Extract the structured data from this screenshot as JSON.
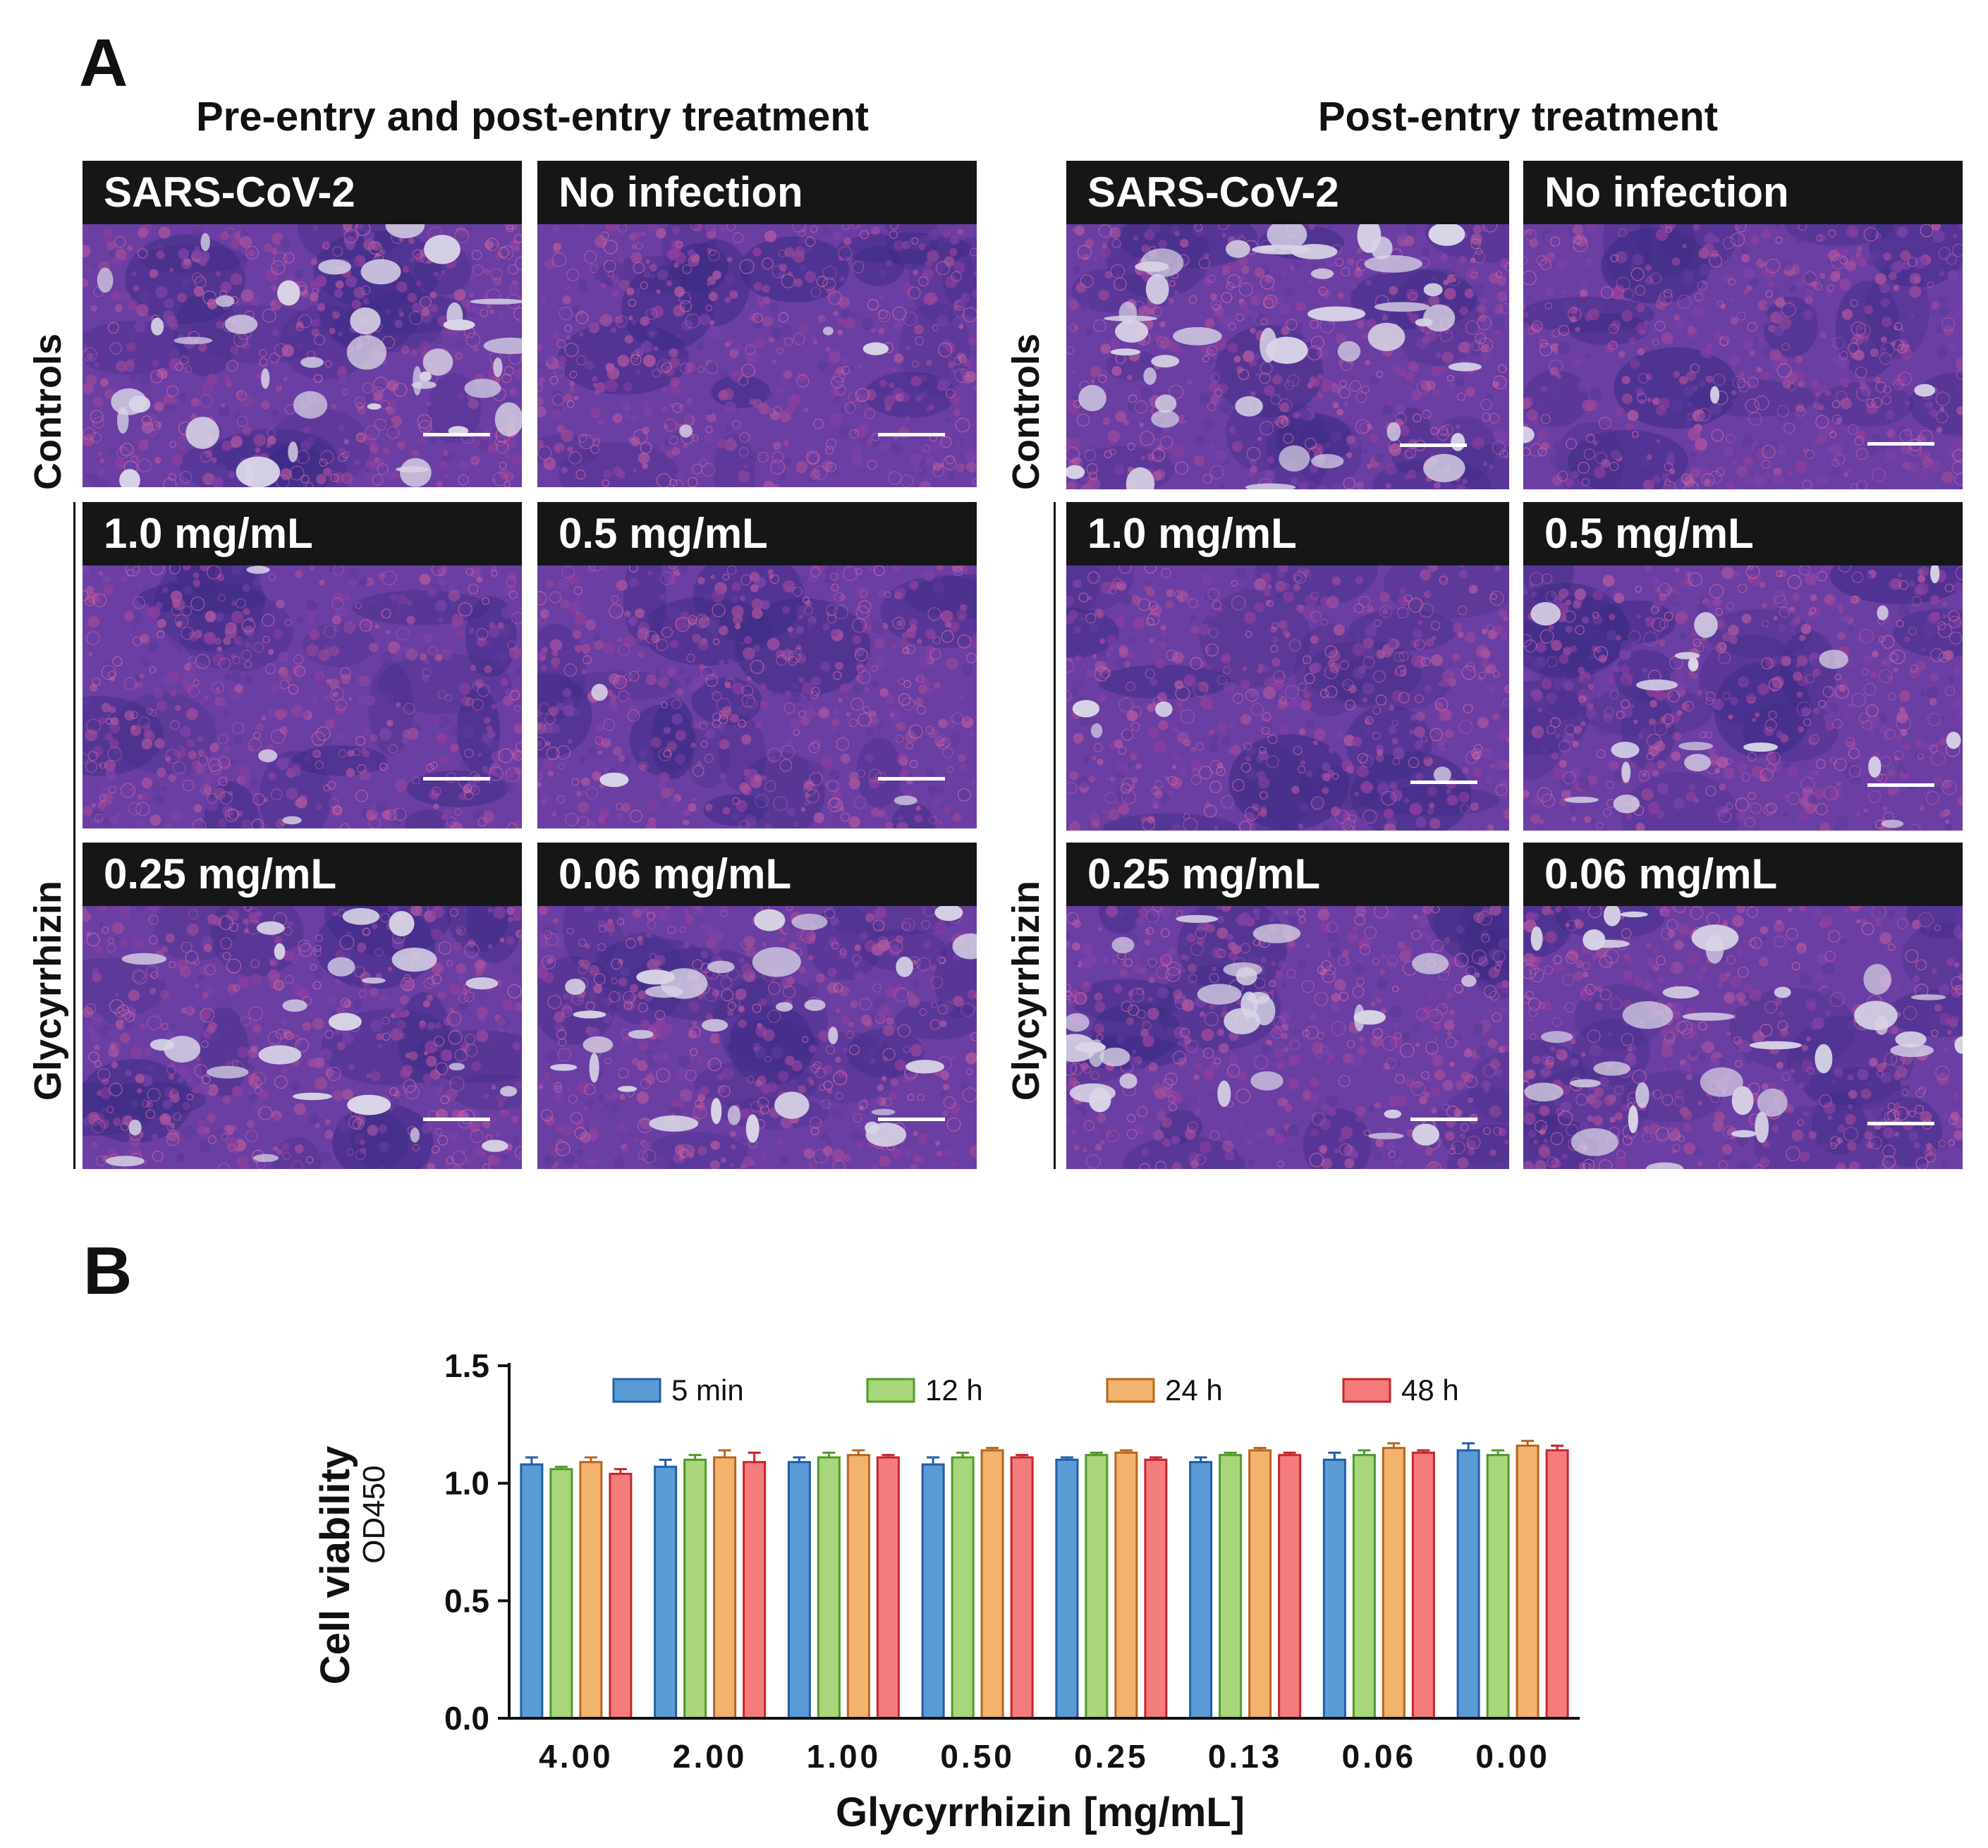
{
  "panel_a": {
    "letter": "A",
    "groups": [
      {
        "title": "Pre-entry and post-entry treatment",
        "controls_label": "Controls",
        "treatment_label": "Glycyrrhizin",
        "panels": [
          "SARS-CoV-2",
          "No infection",
          "1.0 mg/mL",
          "0.5 mg/mL",
          "0.25 mg/mL",
          "0.06 mg/mL"
        ],
        "damage": [
          0.65,
          0.05,
          0.05,
          0.05,
          0.4,
          0.5
        ]
      },
      {
        "title": "Post-entry treatment",
        "controls_label": "Controls",
        "treatment_label": "Glycyrrhizin",
        "panels": [
          "SARS-CoV-2",
          "No infection",
          "1.0 mg/mL",
          "0.5 mg/mL",
          "0.25 mg/mL",
          "0.06 mg/mL"
        ],
        "damage": [
          0.7,
          0.05,
          0.06,
          0.3,
          0.45,
          0.55
        ]
      }
    ]
  },
  "panel_b": {
    "letter": "B",
    "chart_data": {
      "type": "bar",
      "ylabel": "Cell viability",
      "ylabel_sub": "OD450",
      "xlabel": "Glycyrrhizin [mg/mL]",
      "categories": [
        "4.00",
        "2.00",
        "1.00",
        "0.50",
        "0.25",
        "0.13",
        "0.06",
        "0.00"
      ],
      "ylim": [
        0,
        1.5
      ],
      "yticks": [
        "0.0",
        "0.5",
        "1.0",
        "1.5"
      ],
      "legend_position": "top",
      "series": [
        {
          "name": "5 min",
          "fill": "#5b9bd5",
          "stroke": "#1f5fa8",
          "values": [
            1.08,
            1.07,
            1.09,
            1.08,
            1.1,
            1.09,
            1.1,
            1.14
          ],
          "errors": [
            0.03,
            0.03,
            0.02,
            0.03,
            0.01,
            0.02,
            0.03,
            0.03
          ]
        },
        {
          "name": "12 h",
          "fill": "#a9d67a",
          "stroke": "#4e9a2b",
          "values": [
            1.06,
            1.1,
            1.11,
            1.11,
            1.12,
            1.12,
            1.12,
            1.12
          ],
          "errors": [
            0.01,
            0.02,
            0.02,
            0.02,
            0.01,
            0.01,
            0.02,
            0.02
          ]
        },
        {
          "name": "24 h",
          "fill": "#f2b36e",
          "stroke": "#b7661c",
          "values": [
            1.09,
            1.11,
            1.12,
            1.14,
            1.13,
            1.14,
            1.15,
            1.16
          ],
          "errors": [
            0.02,
            0.03,
            0.02,
            0.01,
            0.01,
            0.01,
            0.02,
            0.02
          ]
        },
        {
          "name": "48 h",
          "fill": "#f47c7c",
          "stroke": "#c7262a",
          "values": [
            1.04,
            1.09,
            1.11,
            1.11,
            1.1,
            1.12,
            1.13,
            1.14
          ],
          "errors": [
            0.02,
            0.04,
            0.01,
            0.01,
            0.01,
            0.01,
            0.01,
            0.02
          ]
        }
      ]
    }
  }
}
